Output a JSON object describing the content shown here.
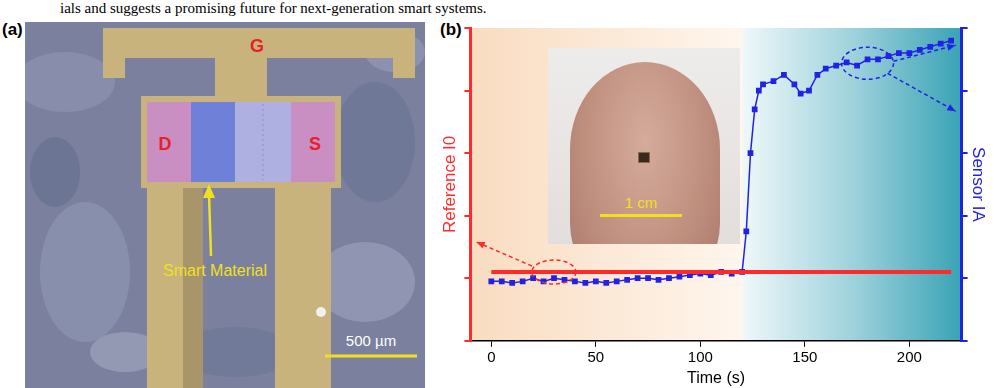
{
  "header": {
    "text": "ials and suggests a promising future for next-generation smart systems."
  },
  "panel_labels": [
    "(a)",
    "(b)"
  ],
  "panel_a": {
    "gate": "G",
    "drain": "D",
    "source": "S",
    "material": "Smart Material",
    "scale_bar": "500 µm"
  },
  "panel_b": {
    "inset_scale_bar": "1 cm"
  },
  "chart_data": {
    "type": "line",
    "x_label": "Time (s)",
    "y_label": "Reference I0",
    "y2_label": "Sensor IA",
    "xlim": [
      -10,
      225
    ],
    "xticks": [
      0,
      50,
      100,
      150,
      200
    ],
    "ylim": [
      0,
      1
    ],
    "yticks": [
      0,
      0.2,
      0.4,
      0.6,
      0.8,
      1
    ],
    "y2lim": [
      0,
      1
    ],
    "y2ticks": [
      0,
      0.2,
      0.4,
      0.6,
      0.8,
      1
    ],
    "tick_labels": "x",
    "grid": false,
    "series": [
      {
        "name": "Reference I0",
        "color": "#ff2a2a",
        "axis": "y",
        "marker": "none",
        "line_style": "solid",
        "x": [
          0,
          20,
          40,
          60,
          80,
          100,
          120,
          140,
          160,
          180,
          200,
          220
        ],
        "values": [
          0.22,
          0.22,
          0.22,
          0.22,
          0.22,
          0.22,
          0.22,
          0.22,
          0.22,
          0.22,
          0.22,
          0.22
        ]
      },
      {
        "name": "Sensor IA",
        "color": "#2222e6",
        "axis": "y2",
        "marker": "square",
        "line_style": "solid",
        "x": [
          0,
          5,
          10,
          15,
          20,
          25,
          30,
          35,
          40,
          45,
          50,
          55,
          60,
          65,
          70,
          75,
          80,
          85,
          90,
          95,
          100,
          105,
          110,
          115,
          120,
          122,
          124,
          126,
          128,
          130,
          135,
          140,
          145,
          148,
          152,
          156,
          160,
          165,
          170,
          175,
          180,
          185,
          190,
          195,
          200,
          205,
          210,
          215,
          220
        ],
        "values": [
          0.19,
          0.19,
          0.185,
          0.19,
          0.2,
          0.19,
          0.2,
          0.195,
          0.19,
          0.185,
          0.19,
          0.185,
          0.19,
          0.195,
          0.2,
          0.2,
          0.195,
          0.2,
          0.205,
          0.21,
          0.215,
          0.21,
          0.22,
          0.215,
          0.22,
          0.35,
          0.6,
          0.74,
          0.8,
          0.82,
          0.83,
          0.85,
          0.82,
          0.79,
          0.8,
          0.85,
          0.87,
          0.88,
          0.89,
          0.88,
          0.9,
          0.9,
          0.91,
          0.92,
          0.92,
          0.93,
          0.94,
          0.95,
          0.96
        ]
      }
    ]
  }
}
